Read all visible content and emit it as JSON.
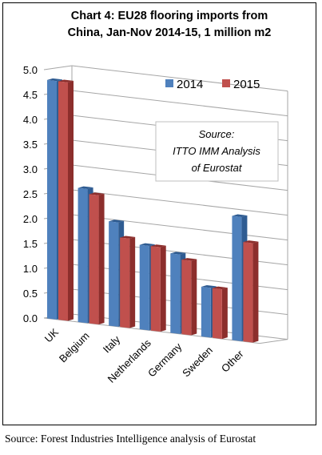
{
  "chart_data": {
    "type": "bar",
    "title_line1": "Chart 4: EU28 flooring imports from",
    "title_line2": "China, Jan-Nov 2014-15, 1 million m2",
    "categories": [
      "UK",
      "Belgium",
      "Italy",
      "Netherlands",
      "Germany",
      "Sweden",
      "Other"
    ],
    "series": [
      {
        "name": "2014",
        "values": [
          4.8,
          2.7,
          2.1,
          1.7,
          1.6,
          1.0,
          2.5
        ]
      },
      {
        "name": "2015",
        "values": [
          4.8,
          2.6,
          1.8,
          1.7,
          1.5,
          1.0,
          2.0
        ]
      }
    ],
    "yticks": [
      "0.0",
      "0.5",
      "1.0",
      "1.5",
      "2.0",
      "2.5",
      "3.0",
      "3.5",
      "4.0",
      "4.5",
      "5.0"
    ],
    "ylim": [
      0,
      5
    ],
    "grid": true,
    "legend_position": "top-right",
    "annotation": [
      "Source:",
      "ITTO IMM Analysis",
      "of Eurostat"
    ],
    "colors": {
      "series_2014": "#4F81BD",
      "series_2014_dark": "#2F5C92",
      "series_2015": "#C0504D",
      "series_2015_dark": "#8C2E2C",
      "grid": "#A6A6A6"
    }
  },
  "footer": {
    "source": "Source: Forest Industries Intelligence analysis of Eurostat"
  }
}
